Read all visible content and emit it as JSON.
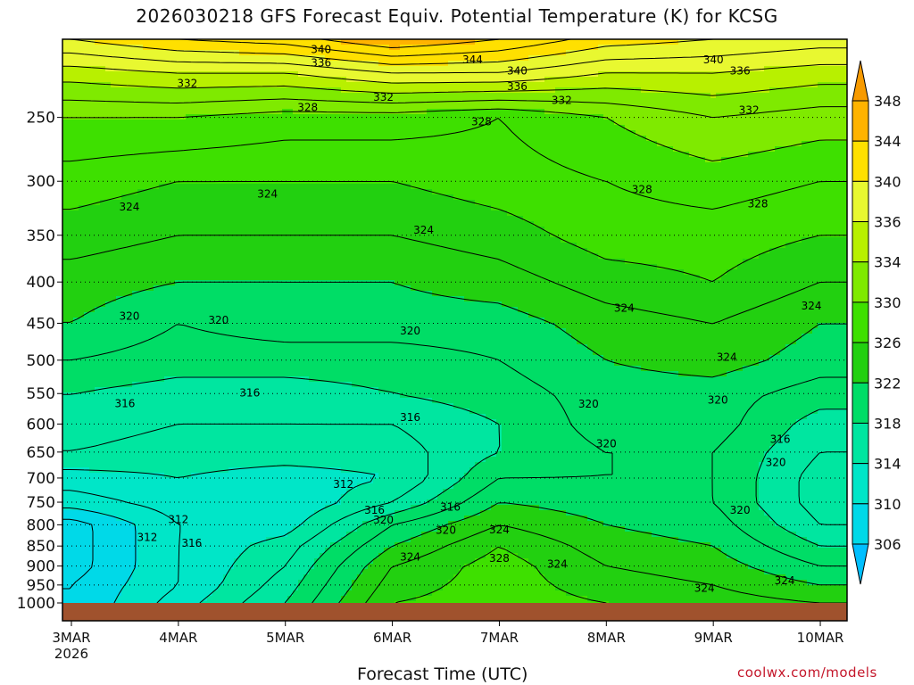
{
  "title": "2026030218 GFS Forecast Equiv. Potential Temperature (K) for KCSG",
  "credit": "coolwx.com/models",
  "chart_data": {
    "type": "heatmap",
    "title": "2026030218 GFS Forecast Equiv. Potential Temperature (K) for KCSG",
    "xlabel": "Forecast Time (UTC)",
    "ylabel": "",
    "x_ticks": [
      {
        "label": "3MAR",
        "sublabel": "2026",
        "hour": 0
      },
      {
        "label": "4MAR",
        "sublabel": "",
        "hour": 24
      },
      {
        "label": "5MAR",
        "sublabel": "",
        "hour": 48
      },
      {
        "label": "6MAR",
        "sublabel": "",
        "hour": 72
      },
      {
        "label": "7MAR",
        "sublabel": "",
        "hour": 96
      },
      {
        "label": "8MAR",
        "sublabel": "",
        "hour": 120
      },
      {
        "label": "9MAR",
        "sublabel": "",
        "hour": 144
      },
      {
        "label": "10MAR",
        "sublabel": "",
        "hour": 168
      }
    ],
    "x_range_hours": [
      -2,
      174
    ],
    "y_ticks": [
      250,
      300,
      350,
      400,
      450,
      500,
      550,
      600,
      650,
      700,
      750,
      800,
      850,
      900,
      950,
      1000
    ],
    "y_range": [
      200,
      1000
    ],
    "y_scale": "log",
    "grid": "dotted horizontal lines at pressure ticks",
    "colorbar": {
      "levels": [
        306,
        310,
        314,
        318,
        322,
        326,
        330,
        334,
        336,
        340,
        344,
        348
      ],
      "colors": [
        "#00bfff",
        "#00d9e8",
        "#00e6c8",
        "#00e6a0",
        "#00dd66",
        "#22d010",
        "#3ee000",
        "#7fea00",
        "#b8f000",
        "#e8f830",
        "#ffe000",
        "#ffb300",
        "#f79a00"
      ],
      "orientation": "vertical",
      "position": "right",
      "extend": "both"
    },
    "columns": [
      {
        "hour": 0,
        "profile": [
          [
            1000,
            308
          ],
          [
            950,
            308
          ],
          [
            900,
            307
          ],
          [
            850,
            307
          ],
          [
            800,
            307
          ],
          [
            750,
            311
          ],
          [
            700,
            313
          ],
          [
            650,
            316
          ],
          [
            600,
            317
          ],
          [
            550,
            318
          ],
          [
            500,
            320
          ],
          [
            450,
            322
          ],
          [
            400,
            323
          ],
          [
            350,
            325
          ],
          [
            300,
            327
          ],
          [
            250,
            330
          ],
          [
            220,
            335
          ],
          [
            200,
            340
          ]
        ]
      },
      {
        "hour": 24,
        "profile": [
          [
            1000,
            313
          ],
          [
            950,
            312
          ],
          [
            900,
            312
          ],
          [
            850,
            312
          ],
          [
            800,
            312
          ],
          [
            750,
            313
          ],
          [
            700,
            314
          ],
          [
            650,
            315
          ],
          [
            600,
            316
          ],
          [
            550,
            317
          ],
          [
            500,
            319
          ],
          [
            450,
            320
          ],
          [
            400,
            322
          ],
          [
            350,
            324
          ],
          [
            300,
            326
          ],
          [
            250,
            330
          ],
          [
            220,
            336
          ],
          [
            200,
            342
          ]
        ]
      },
      {
        "hour": 48,
        "profile": [
          [
            1000,
            318
          ],
          [
            950,
            317
          ],
          [
            900,
            316
          ],
          [
            850,
            315
          ],
          [
            800,
            313
          ],
          [
            750,
            312
          ],
          [
            700,
            313
          ],
          [
            650,
            315
          ],
          [
            600,
            316
          ],
          [
            550,
            317
          ],
          [
            500,
            319
          ],
          [
            450,
            321
          ],
          [
            400,
            322
          ],
          [
            350,
            324
          ],
          [
            300,
            326
          ],
          [
            250,
            329
          ],
          [
            220,
            336
          ],
          [
            200,
            343
          ]
        ]
      },
      {
        "hour": 72,
        "profile": [
          [
            1000,
            326
          ],
          [
            950,
            325
          ],
          [
            900,
            324
          ],
          [
            850,
            322
          ],
          [
            800,
            320
          ],
          [
            750,
            316
          ],
          [
            700,
            314
          ],
          [
            650,
            315
          ],
          [
            600,
            316
          ],
          [
            550,
            318
          ],
          [
            500,
            319
          ],
          [
            450,
            321
          ],
          [
            400,
            322
          ],
          [
            350,
            324
          ],
          [
            300,
            326
          ],
          [
            250,
            329
          ],
          [
            220,
            338
          ],
          [
            200,
            346
          ]
        ]
      },
      {
        "hour": 96,
        "profile": [
          [
            1000,
            327
          ],
          [
            950,
            327
          ],
          [
            900,
            327
          ],
          [
            850,
            326
          ],
          [
            800,
            324
          ],
          [
            750,
            322
          ],
          [
            700,
            320
          ],
          [
            650,
            318
          ],
          [
            600,
            318
          ],
          [
            550,
            319
          ],
          [
            500,
            320
          ],
          [
            450,
            321
          ],
          [
            400,
            323
          ],
          [
            350,
            325
          ],
          [
            300,
            327
          ],
          [
            250,
            328
          ],
          [
            220,
            338
          ],
          [
            200,
            344
          ]
        ]
      },
      {
        "hour": 120,
        "profile": [
          [
            1000,
            326
          ],
          [
            950,
            325
          ],
          [
            900,
            324
          ],
          [
            850,
            323
          ],
          [
            800,
            322
          ],
          [
            750,
            321
          ],
          [
            700,
            320
          ],
          [
            650,
            320
          ],
          [
            600,
            321
          ],
          [
            550,
            321
          ],
          [
            500,
            322
          ],
          [
            450,
            323
          ],
          [
            400,
            325
          ],
          [
            350,
            327
          ],
          [
            300,
            328
          ],
          [
            250,
            330
          ],
          [
            220,
            336
          ],
          [
            200,
            341
          ]
        ]
      },
      {
        "hour": 144,
        "profile": [
          [
            1000,
            325
          ],
          [
            950,
            324
          ],
          [
            900,
            323
          ],
          [
            850,
            322
          ],
          [
            800,
            321
          ],
          [
            750,
            320
          ],
          [
            700,
            320
          ],
          [
            650,
            320
          ],
          [
            600,
            321
          ],
          [
            550,
            321
          ],
          [
            500,
            323
          ],
          [
            450,
            324
          ],
          [
            400,
            326
          ],
          [
            350,
            327
          ],
          [
            300,
            329
          ],
          [
            250,
            332
          ],
          [
            220,
            336
          ],
          [
            200,
            340
          ]
        ]
      },
      {
        "hour": 168,
        "profile": [
          [
            1000,
            324
          ],
          [
            950,
            322
          ],
          [
            900,
            320
          ],
          [
            850,
            318
          ],
          [
            800,
            316
          ],
          [
            750,
            315
          ],
          [
            700,
            315
          ],
          [
            650,
            316
          ],
          [
            600,
            317
          ],
          [
            550,
            319
          ],
          [
            500,
            321
          ],
          [
            450,
            322
          ],
          [
            400,
            324
          ],
          [
            350,
            326
          ],
          [
            300,
            328
          ],
          [
            250,
            331
          ],
          [
            220,
            335
          ],
          [
            200,
            339
          ]
        ]
      }
    ],
    "contour_labels": [
      {
        "text": "340",
        "hour": 56,
        "p": 206
      },
      {
        "text": "336",
        "hour": 56,
        "p": 214
      },
      {
        "text": "344",
        "hour": 90,
        "p": 212
      },
      {
        "text": "340",
        "hour": 100,
        "p": 219
      },
      {
        "text": "336",
        "hour": 100,
        "p": 229
      },
      {
        "text": "340",
        "hour": 144,
        "p": 212
      },
      {
        "text": "336",
        "hour": 150,
        "p": 219
      },
      {
        "text": "332",
        "hour": 26,
        "p": 227
      },
      {
        "text": "332",
        "hour": 70,
        "p": 236
      },
      {
        "text": "332",
        "hour": 110,
        "p": 238
      },
      {
        "text": "332",
        "hour": 152,
        "p": 245
      },
      {
        "text": "328",
        "hour": 53,
        "p": 243
      },
      {
        "text": "328",
        "hour": 92,
        "p": 253
      },
      {
        "text": "328",
        "hour": 128,
        "p": 307
      },
      {
        "text": "328",
        "hour": 154,
        "p": 320
      },
      {
        "text": "324",
        "hour": 13,
        "p": 323
      },
      {
        "text": "324",
        "hour": 44,
        "p": 311
      },
      {
        "text": "324",
        "hour": 79,
        "p": 345
      },
      {
        "text": "324",
        "hour": 124,
        "p": 431
      },
      {
        "text": "324",
        "hour": 166,
        "p": 428
      },
      {
        "text": "324",
        "hour": 147,
        "p": 496
      },
      {
        "text": "320",
        "hour": 13,
        "p": 441
      },
      {
        "text": "320",
        "hour": 33,
        "p": 446
      },
      {
        "text": "320",
        "hour": 76,
        "p": 460
      },
      {
        "text": "320",
        "hour": 116,
        "p": 567
      },
      {
        "text": "320",
        "hour": 145,
        "p": 560
      },
      {
        "text": "320",
        "hour": 120,
        "p": 635
      },
      {
        "text": "316",
        "hour": 12,
        "p": 566
      },
      {
        "text": "316",
        "hour": 40,
        "p": 549
      },
      {
        "text": "316",
        "hour": 76,
        "p": 589
      },
      {
        "text": "316",
        "hour": 159,
        "p": 627
      },
      {
        "text": "320",
        "hour": 158,
        "p": 670
      },
      {
        "text": "312",
        "hour": 24,
        "p": 788
      },
      {
        "text": "312",
        "hour": 17,
        "p": 829
      },
      {
        "text": "316",
        "hour": 27,
        "p": 843
      },
      {
        "text": "312",
        "hour": 61,
        "p": 713
      },
      {
        "text": "316",
        "hour": 68,
        "p": 767
      },
      {
        "text": "320",
        "hour": 70,
        "p": 789
      },
      {
        "text": "316",
        "hour": 85,
        "p": 761
      },
      {
        "text": "320",
        "hour": 84,
        "p": 813
      },
      {
        "text": "324",
        "hour": 76,
        "p": 877
      },
      {
        "text": "324",
        "hour": 96,
        "p": 812
      },
      {
        "text": "328",
        "hour": 96,
        "p": 880
      },
      {
        "text": "324",
        "hour": 109,
        "p": 895
      },
      {
        "text": "320",
        "hour": 150,
        "p": 767
      },
      {
        "text": "324",
        "hour": 142,
        "p": 959
      },
      {
        "text": "324",
        "hour": 160,
        "p": 938
      }
    ]
  }
}
